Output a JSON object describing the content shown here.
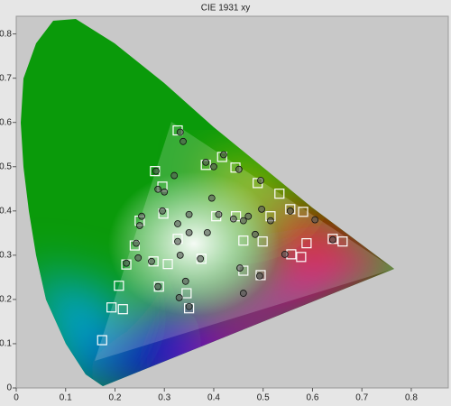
{
  "chart_data": {
    "type": "scatter",
    "title": "CIE 1931 xy",
    "xlim": [
      0,
      0.875
    ],
    "ylim": [
      0,
      0.84
    ],
    "xticks": [
      0,
      0.1,
      0.2,
      0.3,
      0.4,
      0.5,
      0.6,
      0.7,
      0.8
    ],
    "yticks": [
      0,
      0.1,
      0.2,
      0.3,
      0.4,
      0.5,
      0.6,
      0.7,
      0.8
    ],
    "series": [
      {
        "marker": "square",
        "color": "#ffffff",
        "x": [
          0.174,
          0.193,
          0.216,
          0.208,
          0.223,
          0.24,
          0.25,
          0.281,
          0.296,
          0.327,
          0.384,
          0.417,
          0.444,
          0.489,
          0.533,
          0.581,
          0.588,
          0.577,
          0.641,
          0.661,
          0.557,
          0.499,
          0.46,
          0.495,
          0.46,
          0.405,
          0.445,
          0.515,
          0.555,
          0.307,
          0.345,
          0.35,
          0.289,
          0.327,
          0.375,
          0.298,
          0.278
        ],
        "y": [
          0.108,
          0.182,
          0.178,
          0.231,
          0.279,
          0.322,
          0.378,
          0.49,
          0.455,
          0.582,
          0.504,
          0.522,
          0.498,
          0.463,
          0.439,
          0.398,
          0.327,
          0.296,
          0.337,
          0.331,
          0.302,
          0.331,
          0.333,
          0.255,
          0.265,
          0.388,
          0.388,
          0.388,
          0.404,
          0.28,
          0.214,
          0.18,
          0.229,
          0.337,
          0.292,
          0.394,
          0.286
        ]
      },
      {
        "marker": "circle",
        "color": "#555555",
        "x": [
          0.332,
          0.338,
          0.4,
          0.384,
          0.42,
          0.451,
          0.495,
          0.283,
          0.32,
          0.3,
          0.287,
          0.254,
          0.296,
          0.35,
          0.396,
          0.41,
          0.44,
          0.47,
          0.497,
          0.515,
          0.555,
          0.605,
          0.484,
          0.46,
          0.25,
          0.327,
          0.327,
          0.35,
          0.387,
          0.332,
          0.243,
          0.223,
          0.247,
          0.274,
          0.373,
          0.453,
          0.493,
          0.46,
          0.544,
          0.641,
          0.33,
          0.343,
          0.35,
          0.287
        ],
        "y": [
          0.578,
          0.557,
          0.5,
          0.51,
          0.527,
          0.494,
          0.469,
          0.49,
          0.48,
          0.443,
          0.449,
          0.388,
          0.4,
          0.392,
          0.429,
          0.392,
          0.382,
          0.388,
          0.404,
          0.378,
          0.4,
          0.38,
          0.347,
          0.378,
          0.367,
          0.371,
          0.331,
          0.351,
          0.351,
          0.3,
          0.327,
          0.282,
          0.294,
          0.286,
          0.292,
          0.271,
          0.253,
          0.214,
          0.302,
          0.335,
          0.204,
          0.241,
          0.184,
          0.229
        ]
      }
    ]
  }
}
